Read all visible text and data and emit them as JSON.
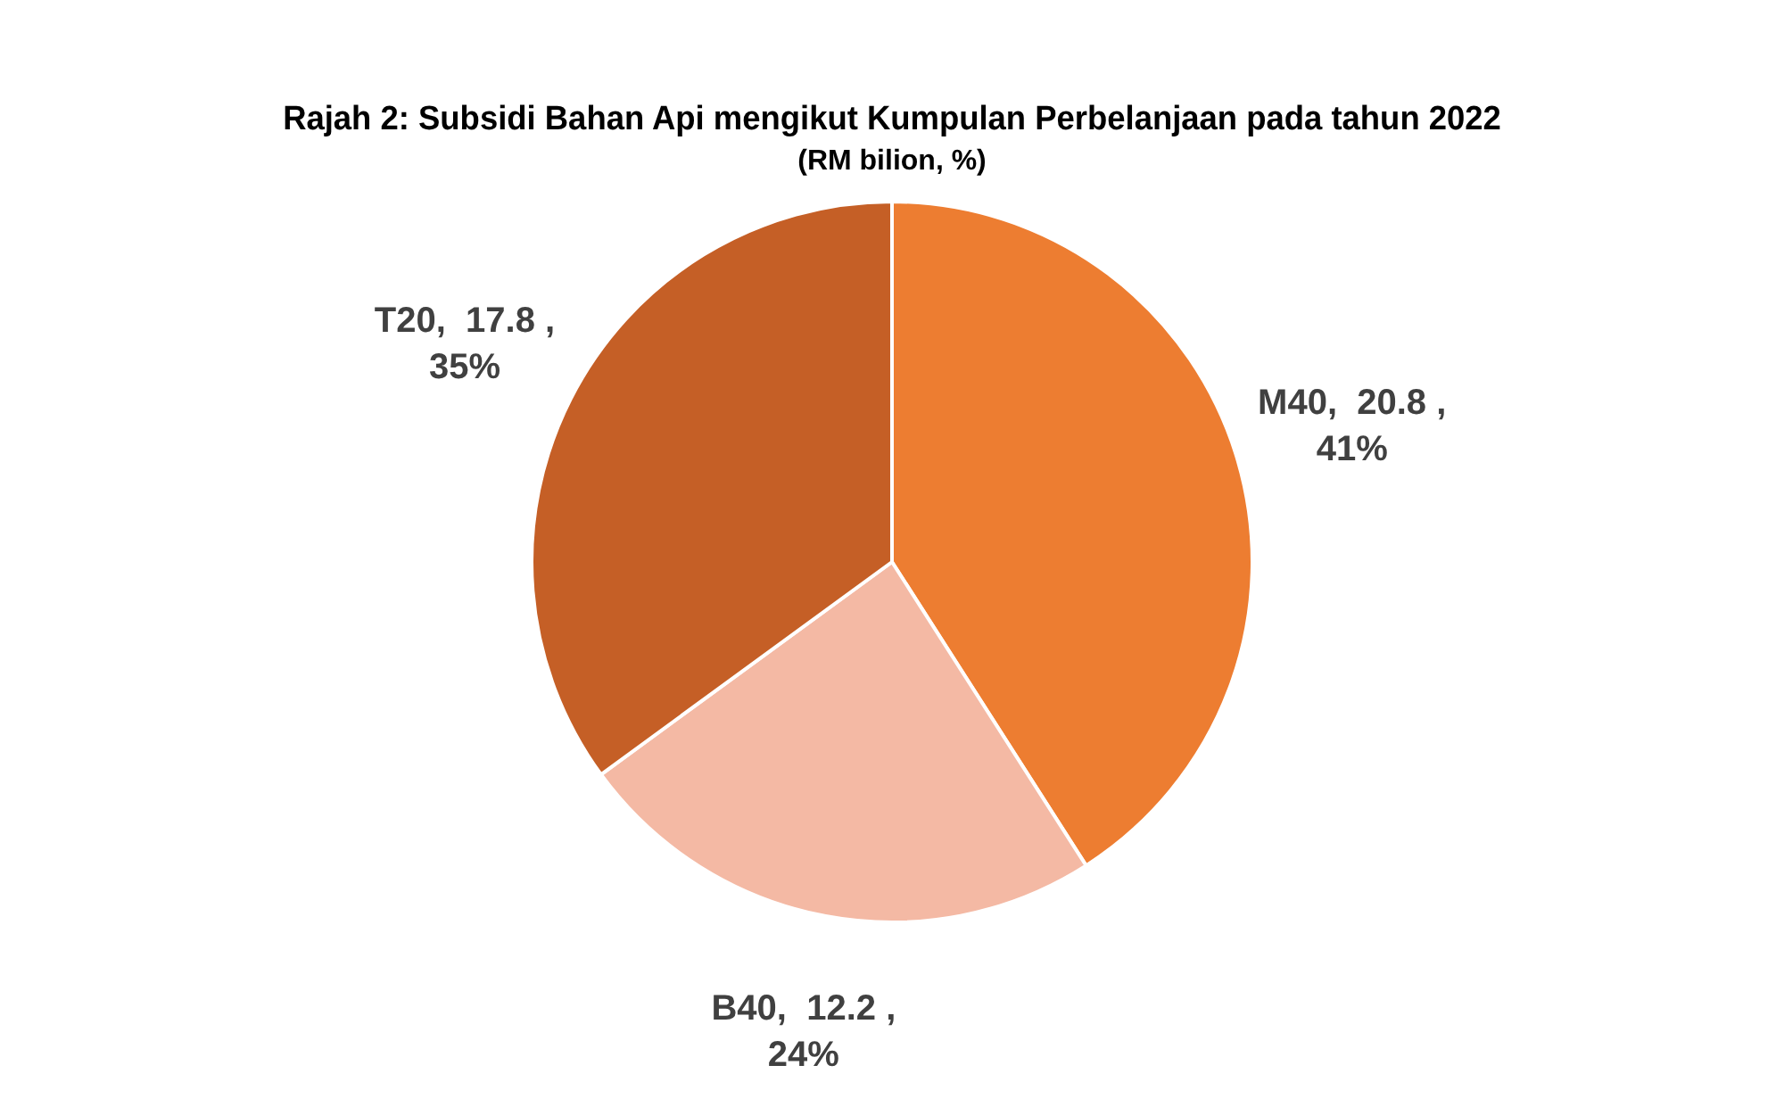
{
  "chart_data": {
    "type": "pie",
    "title": "Rajah 2: Subsidi Bahan Api mengikut Kumpulan Perbelanjaan pada tahun 2022",
    "subtitle": "(RM bilion, %)",
    "categories": [
      "M40",
      "B40",
      "T20"
    ],
    "values": [
      20.8,
      12.2,
      17.8
    ],
    "colors": [
      "#ed7d31",
      "#f4b9a4",
      "#c55f26"
    ],
    "value_labels": [
      ",  20.8 ,\n41%",
      ",  12.2 ,\n24%",
      ",  17.8 ,\n35%"
    ],
    "legend": false
  }
}
